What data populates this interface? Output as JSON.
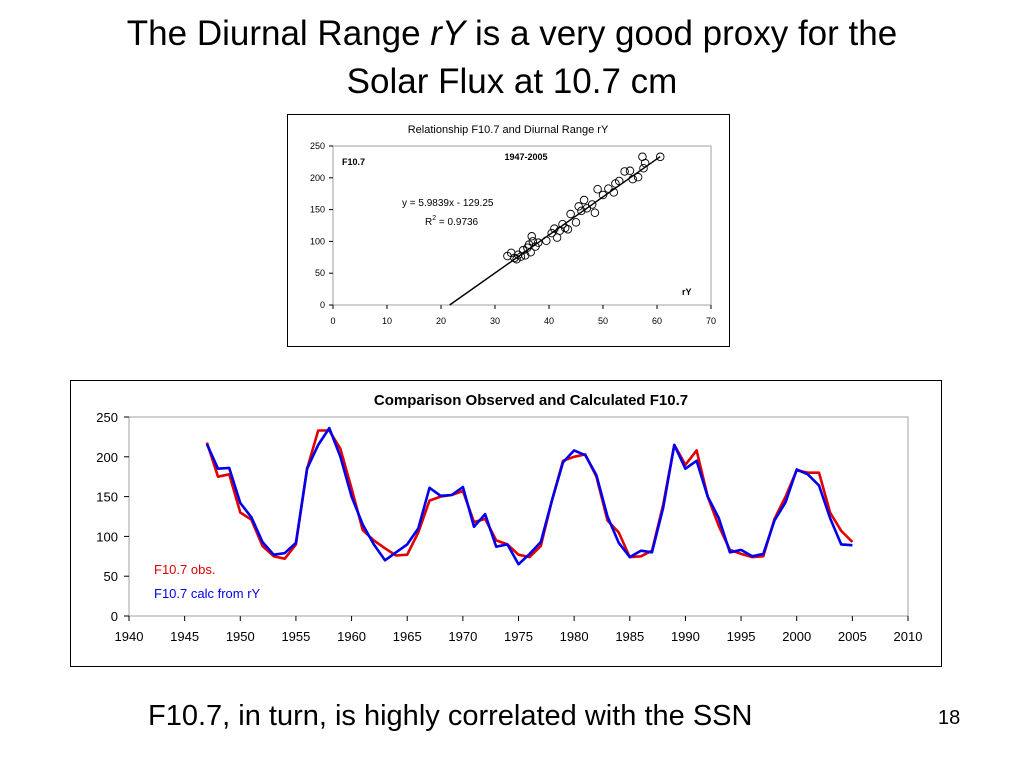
{
  "slide": {
    "title_line1_pre": "The Diurnal Range ",
    "title_line1_var": "rY",
    "title_line1_post": " is a very good proxy for the",
    "title_line2": "Solar Flux at 10.7 cm",
    "caption": "F10.7, in turn, is highly correlated with the SSN",
    "slide_number": "18"
  },
  "colors": {
    "obs": "#e00000",
    "calc": "#0000ee",
    "frame": "#000000",
    "grid": "#a0a0a0"
  },
  "chart_data": [
    {
      "type": "scatter",
      "title": "Relationship F10.7 and Diurnal Range rY",
      "subtitle": "1947-2005",
      "ylabel": "F10.7",
      "xlabel": "rY",
      "equation": "y = 5.9839x - 129.25",
      "r2_label": "R",
      "r2_exp": "2",
      "r2_value": " = 0.9736",
      "xlim": [
        0,
        70
      ],
      "ylim": [
        0,
        250
      ],
      "xticks": [
        "0",
        "10",
        "20",
        "30",
        "40",
        "50",
        "60",
        "70"
      ],
      "yticks": [
        "0",
        "50",
        "100",
        "150",
        "200",
        "250"
      ],
      "trendline": {
        "slope": 5.9839,
        "intercept": -129.25,
        "x_range": [
          21.6,
          60.6
        ]
      },
      "points": [
        [
          32.3,
          77
        ],
        [
          33.0,
          82
        ],
        [
          33.6,
          74
        ],
        [
          34.0,
          72
        ],
        [
          34.3,
          79
        ],
        [
          34.8,
          76
        ],
        [
          35.2,
          86
        ],
        [
          35.6,
          78
        ],
        [
          36.0,
          90
        ],
        [
          36.3,
          95
        ],
        [
          36.6,
          83
        ],
        [
          37.0,
          100
        ],
        [
          36.8,
          108
        ],
        [
          37.5,
          92
        ],
        [
          38.0,
          98
        ],
        [
          39.5,
          101
        ],
        [
          40.5,
          113
        ],
        [
          41.0,
          120
        ],
        [
          41.5,
          106
        ],
        [
          42.0,
          117
        ],
        [
          42.5,
          127
        ],
        [
          43.0,
          121
        ],
        [
          43.5,
          119
        ],
        [
          44.0,
          143
        ],
        [
          45.0,
          130
        ],
        [
          45.5,
          155
        ],
        [
          46.0,
          148
        ],
        [
          46.5,
          165
        ],
        [
          47.0,
          152
        ],
        [
          48.0,
          158
        ],
        [
          48.5,
          145
        ],
        [
          49.0,
          182
        ],
        [
          50.0,
          173
        ],
        [
          51.0,
          183
        ],
        [
          52.0,
          177
        ],
        [
          52.3,
          191
        ],
        [
          53.0,
          195
        ],
        [
          54.0,
          210
        ],
        [
          55.0,
          211
        ],
        [
          55.5,
          198
        ],
        [
          56.5,
          201
        ],
        [
          57.5,
          215
        ],
        [
          57.8,
          223
        ],
        [
          57.3,
          233
        ],
        [
          60.6,
          233
        ]
      ]
    },
    {
      "type": "line",
      "title": "Comparison Observed and Calculated F10.7",
      "xlim": [
        1940,
        2010
      ],
      "ylim": [
        0,
        250
      ],
      "xticks": [
        "1940",
        "1945",
        "1950",
        "1955",
        "1960",
        "1965",
        "1970",
        "1975",
        "1980",
        "1985",
        "1990",
        "1995",
        "2000",
        "2005",
        "2010"
      ],
      "yticks": [
        "0",
        "50",
        "100",
        "150",
        "200",
        "250"
      ],
      "x": [
        1947,
        1948,
        1949,
        1950,
        1951,
        1952,
        1953,
        1954,
        1955,
        1956,
        1957,
        1958,
        1959,
        1960,
        1961,
        1962,
        1963,
        1964,
        1965,
        1966,
        1967,
        1968,
        1969,
        1970,
        1971,
        1972,
        1973,
        1974,
        1975,
        1976,
        1977,
        1978,
        1979,
        1980,
        1981,
        1982,
        1983,
        1984,
        1985,
        1986,
        1987,
        1988,
        1989,
        1990,
        1991,
        1992,
        1993,
        1994,
        1995,
        1996,
        1997,
        1998,
        1999,
        2000,
        2001,
        2002,
        2003,
        2004,
        2005
      ],
      "series": [
        {
          "name": "F10.7 obs.",
          "values": [
            218,
            175,
            178,
            130,
            121,
            88,
            75,
            72,
            90,
            185,
            233,
            233,
            210,
            160,
            108,
            95,
            85,
            76,
            77,
            105,
            145,
            150,
            152,
            157,
            118,
            122,
            95,
            90,
            77,
            74,
            88,
            145,
            195,
            200,
            203,
            175,
            120,
            105,
            74,
            75,
            82,
            140,
            215,
            190,
            208,
            150,
            113,
            83,
            78,
            74,
            75,
            122,
            150,
            183,
            180,
            180,
            130,
            107,
            93
          ]
        },
        {
          "name": "F10.7 calc from rY",
          "values": [
            216,
            185,
            186,
            142,
            124,
            93,
            77,
            79,
            92,
            185,
            215,
            236,
            200,
            150,
            115,
            90,
            70,
            80,
            90,
            110,
            161,
            151,
            152,
            162,
            112,
            128,
            87,
            90,
            65,
            78,
            93,
            145,
            193,
            208,
            202,
            177,
            125,
            92,
            74,
            82,
            80,
            136,
            215,
            185,
            195,
            150,
            123,
            80,
            83,
            75,
            78,
            120,
            143,
            184,
            178,
            164,
            123,
            90,
            89
          ]
        }
      ]
    }
  ]
}
